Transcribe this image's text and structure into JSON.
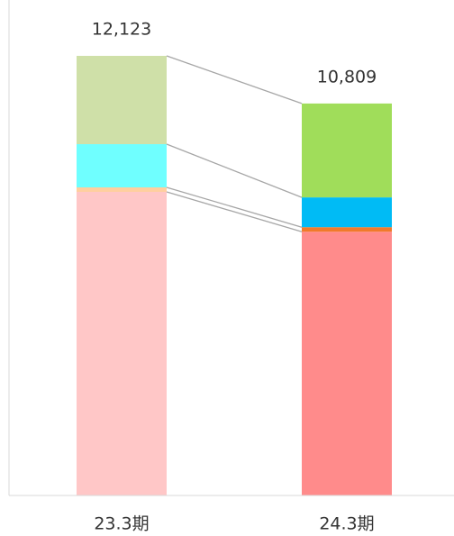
{
  "chart_data": {
    "type": "stacked_bar",
    "categories": [
      "23.3期",
      "24.3期"
    ],
    "series": [
      {
        "colors": [
          "#ffc7c7",
          "#ff8b8b"
        ],
        "values": [
          8372,
          7273
        ]
      },
      {
        "colors": [
          "#ffcf9f",
          "#f07a2a"
        ],
        "values": [
          124,
          125
        ]
      },
      {
        "colors": [
          "#6fffff",
          "#00bbf5"
        ],
        "values": [
          1192,
          822
        ]
      },
      {
        "colors": [
          "#cfe0a8",
          "#a0dd5a"
        ],
        "values": [
          2435,
          2589
        ]
      }
    ],
    "totals": {
      "values": [
        12123,
        10809
      ],
      "value_labels": [
        "12,123",
        "10,809"
      ]
    },
    "connectors": true
  }
}
